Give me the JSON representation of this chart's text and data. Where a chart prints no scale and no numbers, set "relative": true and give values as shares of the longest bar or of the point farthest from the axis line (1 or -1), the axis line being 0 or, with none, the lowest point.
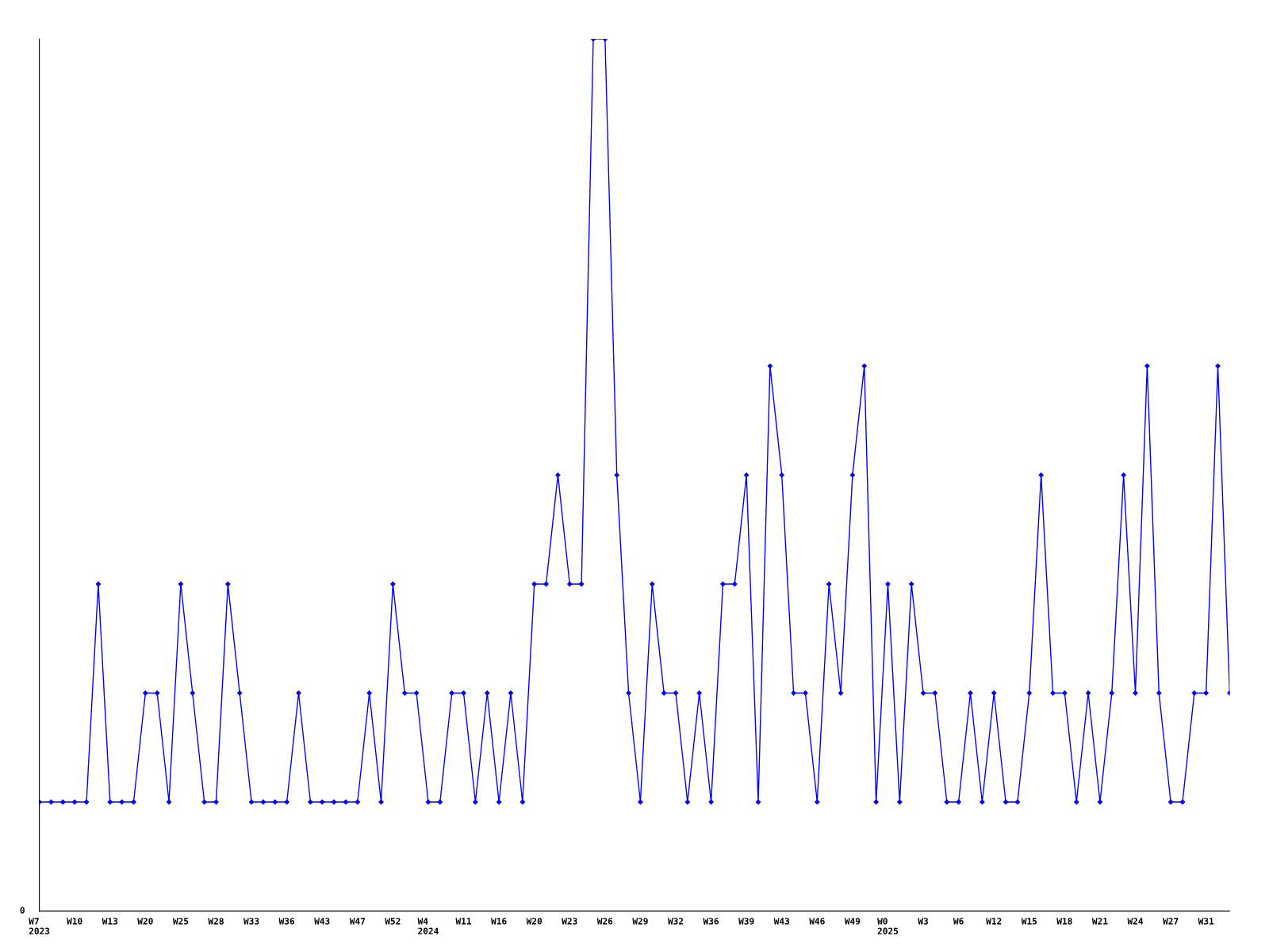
{
  "chart_data": {
    "type": "line",
    "relative": true,
    "marker": "diamond",
    "color": "#0000ff",
    "annotations": [
      "0"
    ],
    "categories": [
      "W7\n2023",
      null,
      null,
      "W10",
      null,
      null,
      "W13",
      null,
      null,
      "W20",
      null,
      null,
      "W25",
      null,
      null,
      "W28",
      null,
      null,
      "W33",
      null,
      null,
      "W36",
      null,
      null,
      "W43",
      null,
      null,
      "W47",
      null,
      null,
      "W52",
      null,
      null,
      "W4\n2024",
      null,
      null,
      "W11",
      null,
      null,
      "W16",
      null,
      null,
      "W20",
      null,
      null,
      "W23",
      null,
      null,
      "W26",
      null,
      null,
      "W29",
      null,
      null,
      "W32",
      null,
      null,
      "W36",
      null,
      null,
      "W39",
      null,
      null,
      "W43",
      null,
      null,
      "W46",
      null,
      null,
      "W49",
      null,
      null,
      "W0\n2025",
      null,
      null,
      "W3",
      null,
      null,
      "W6",
      null,
      null,
      "W12",
      null,
      null,
      "W15",
      null,
      null,
      "W18",
      null,
      null,
      "W21",
      null,
      null,
      "W24",
      null,
      null,
      "W27",
      null,
      null,
      "W31",
      null,
      null
    ],
    "values": [
      0.125,
      0.125,
      0.125,
      0.125,
      0.125,
      0.375,
      0.125,
      0.125,
      0.125,
      0.25,
      0.25,
      0.125,
      0.375,
      0.25,
      0.125,
      0.125,
      0.375,
      0.25,
      0.125,
      0.125,
      0.125,
      0.125,
      0.25,
      0.125,
      0.125,
      0.125,
      0.125,
      0.125,
      0.25,
      0.125,
      0.375,
      0.25,
      0.25,
      0.125,
      0.125,
      0.25,
      0.25,
      0.125,
      0.25,
      0.125,
      0.25,
      0.125,
      0.375,
      0.375,
      0.5,
      0.375,
      0.375,
      1,
      1,
      0.5,
      0.25,
      0.125,
      0.375,
      0.25,
      0.25,
      0.125,
      0.25,
      0.125,
      0.375,
      0.375,
      0.5,
      0.125,
      0.625,
      0.5,
      0.25,
      0.25,
      0.125,
      0.375,
      0.25,
      0.5,
      0.625,
      0.125,
      0.375,
      0.125,
      0.375,
      0.25,
      0.25,
      0.125,
      0.125,
      0.25,
      0.125,
      0.25,
      0.125,
      0.125,
      0.25,
      0.5,
      0.25,
      0.25,
      0.125,
      0.25,
      0.125,
      0.25,
      0.5,
      0.25,
      0.625,
      0.25,
      0.125,
      0.125,
      0.25,
      0.25,
      0.625,
      0.25
    ]
  }
}
